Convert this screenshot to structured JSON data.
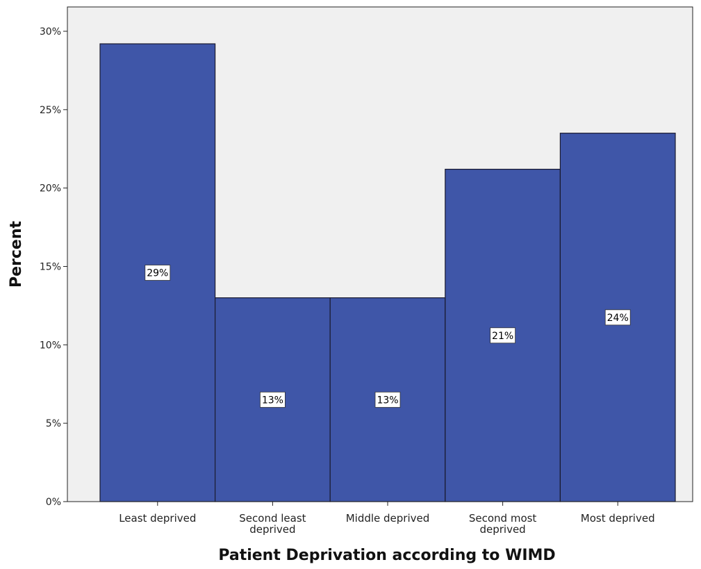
{
  "chart_data": {
    "type": "bar",
    "title": "",
    "xlabel": "Patient Deprivation according to WIMD",
    "ylabel": "Percent",
    "categories": [
      [
        "Least deprived"
      ],
      [
        "Second least",
        "deprived"
      ],
      [
        "Middle deprived"
      ],
      [
        "Second most",
        "deprived"
      ],
      [
        "Most deprived"
      ]
    ],
    "values": [
      29.2,
      13.0,
      13.0,
      21.2,
      23.5
    ],
    "data_labels": [
      "29%",
      "13%",
      "13%",
      "21%",
      "24%"
    ],
    "ylim": [
      0,
      30
    ],
    "yticks": [
      0,
      5,
      10,
      15,
      20,
      25,
      30
    ],
    "ytick_labels": [
      "0%",
      "5%",
      "10%",
      "15%",
      "20%",
      "25%",
      "30%"
    ],
    "grid": false,
    "colors": {
      "bar": "#3f56a8",
      "bar_edge": "#1a1a2e",
      "plot_background": "#f0f0f0",
      "label_box": "#ffffff"
    }
  }
}
